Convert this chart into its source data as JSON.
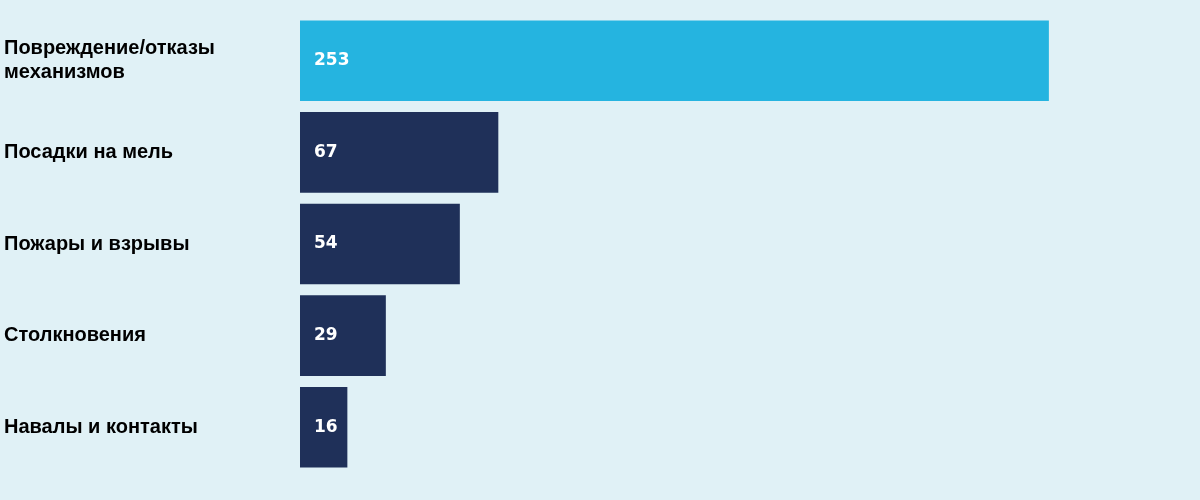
{
  "chart_data": {
    "type": "bar",
    "orientation": "horizontal",
    "categories": [
      "Повреждение/отказы механизмов",
      "Посадки на мель",
      "Пожары и взрывы",
      "Столкновения",
      "Навалы и контакты"
    ],
    "values": [
      253,
      67,
      54,
      29,
      16
    ],
    "colors": [
      "#25b4e0",
      "#1f3059",
      "#1f3059",
      "#1f3059",
      "#1f3059"
    ],
    "data_labels": true
  }
}
